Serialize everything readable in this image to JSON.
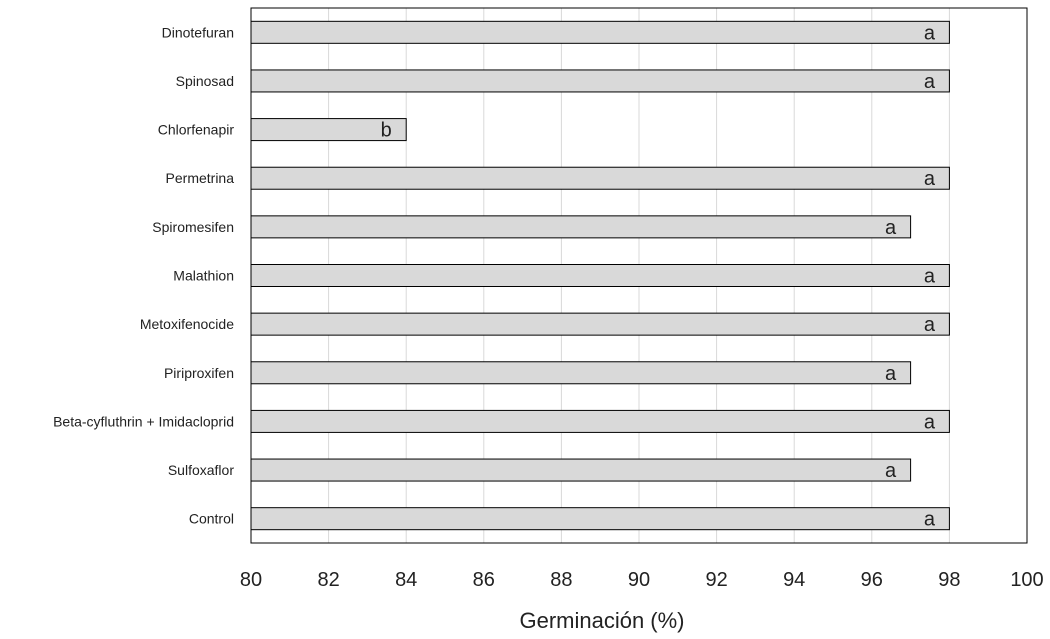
{
  "chart_data": {
    "type": "bar",
    "orientation": "horizontal",
    "categories": [
      "Dinotefuran",
      "Spinosad",
      "Chlorfenapir",
      "Permetrina",
      "Spiromesifen",
      "Malathion",
      "Metoxifenocide",
      "Piriproxifen",
      "Beta-cyfluthrin + Imidacloprid",
      "Sulfoxaflor",
      "Control"
    ],
    "values": [
      98,
      98,
      84,
      98,
      97,
      98,
      98,
      97,
      98,
      97,
      98
    ],
    "bar_labels": [
      "a",
      "a",
      "b",
      "a",
      "a",
      "a",
      "a",
      "a",
      "a",
      "a",
      "a"
    ],
    "title": "",
    "xlabel": "Germinación (%)",
    "ylabel": "",
    "xlim": [
      80,
      100
    ],
    "xticks": [
      "80",
      "82",
      "84",
      "86",
      "88",
      "90",
      "92",
      "94",
      "96",
      "98",
      "100"
    ],
    "grid": "vertical",
    "bar_color": "#d9d9d9",
    "bar_edge_color": "#000000",
    "grid_color": "#d9d9d9"
  }
}
